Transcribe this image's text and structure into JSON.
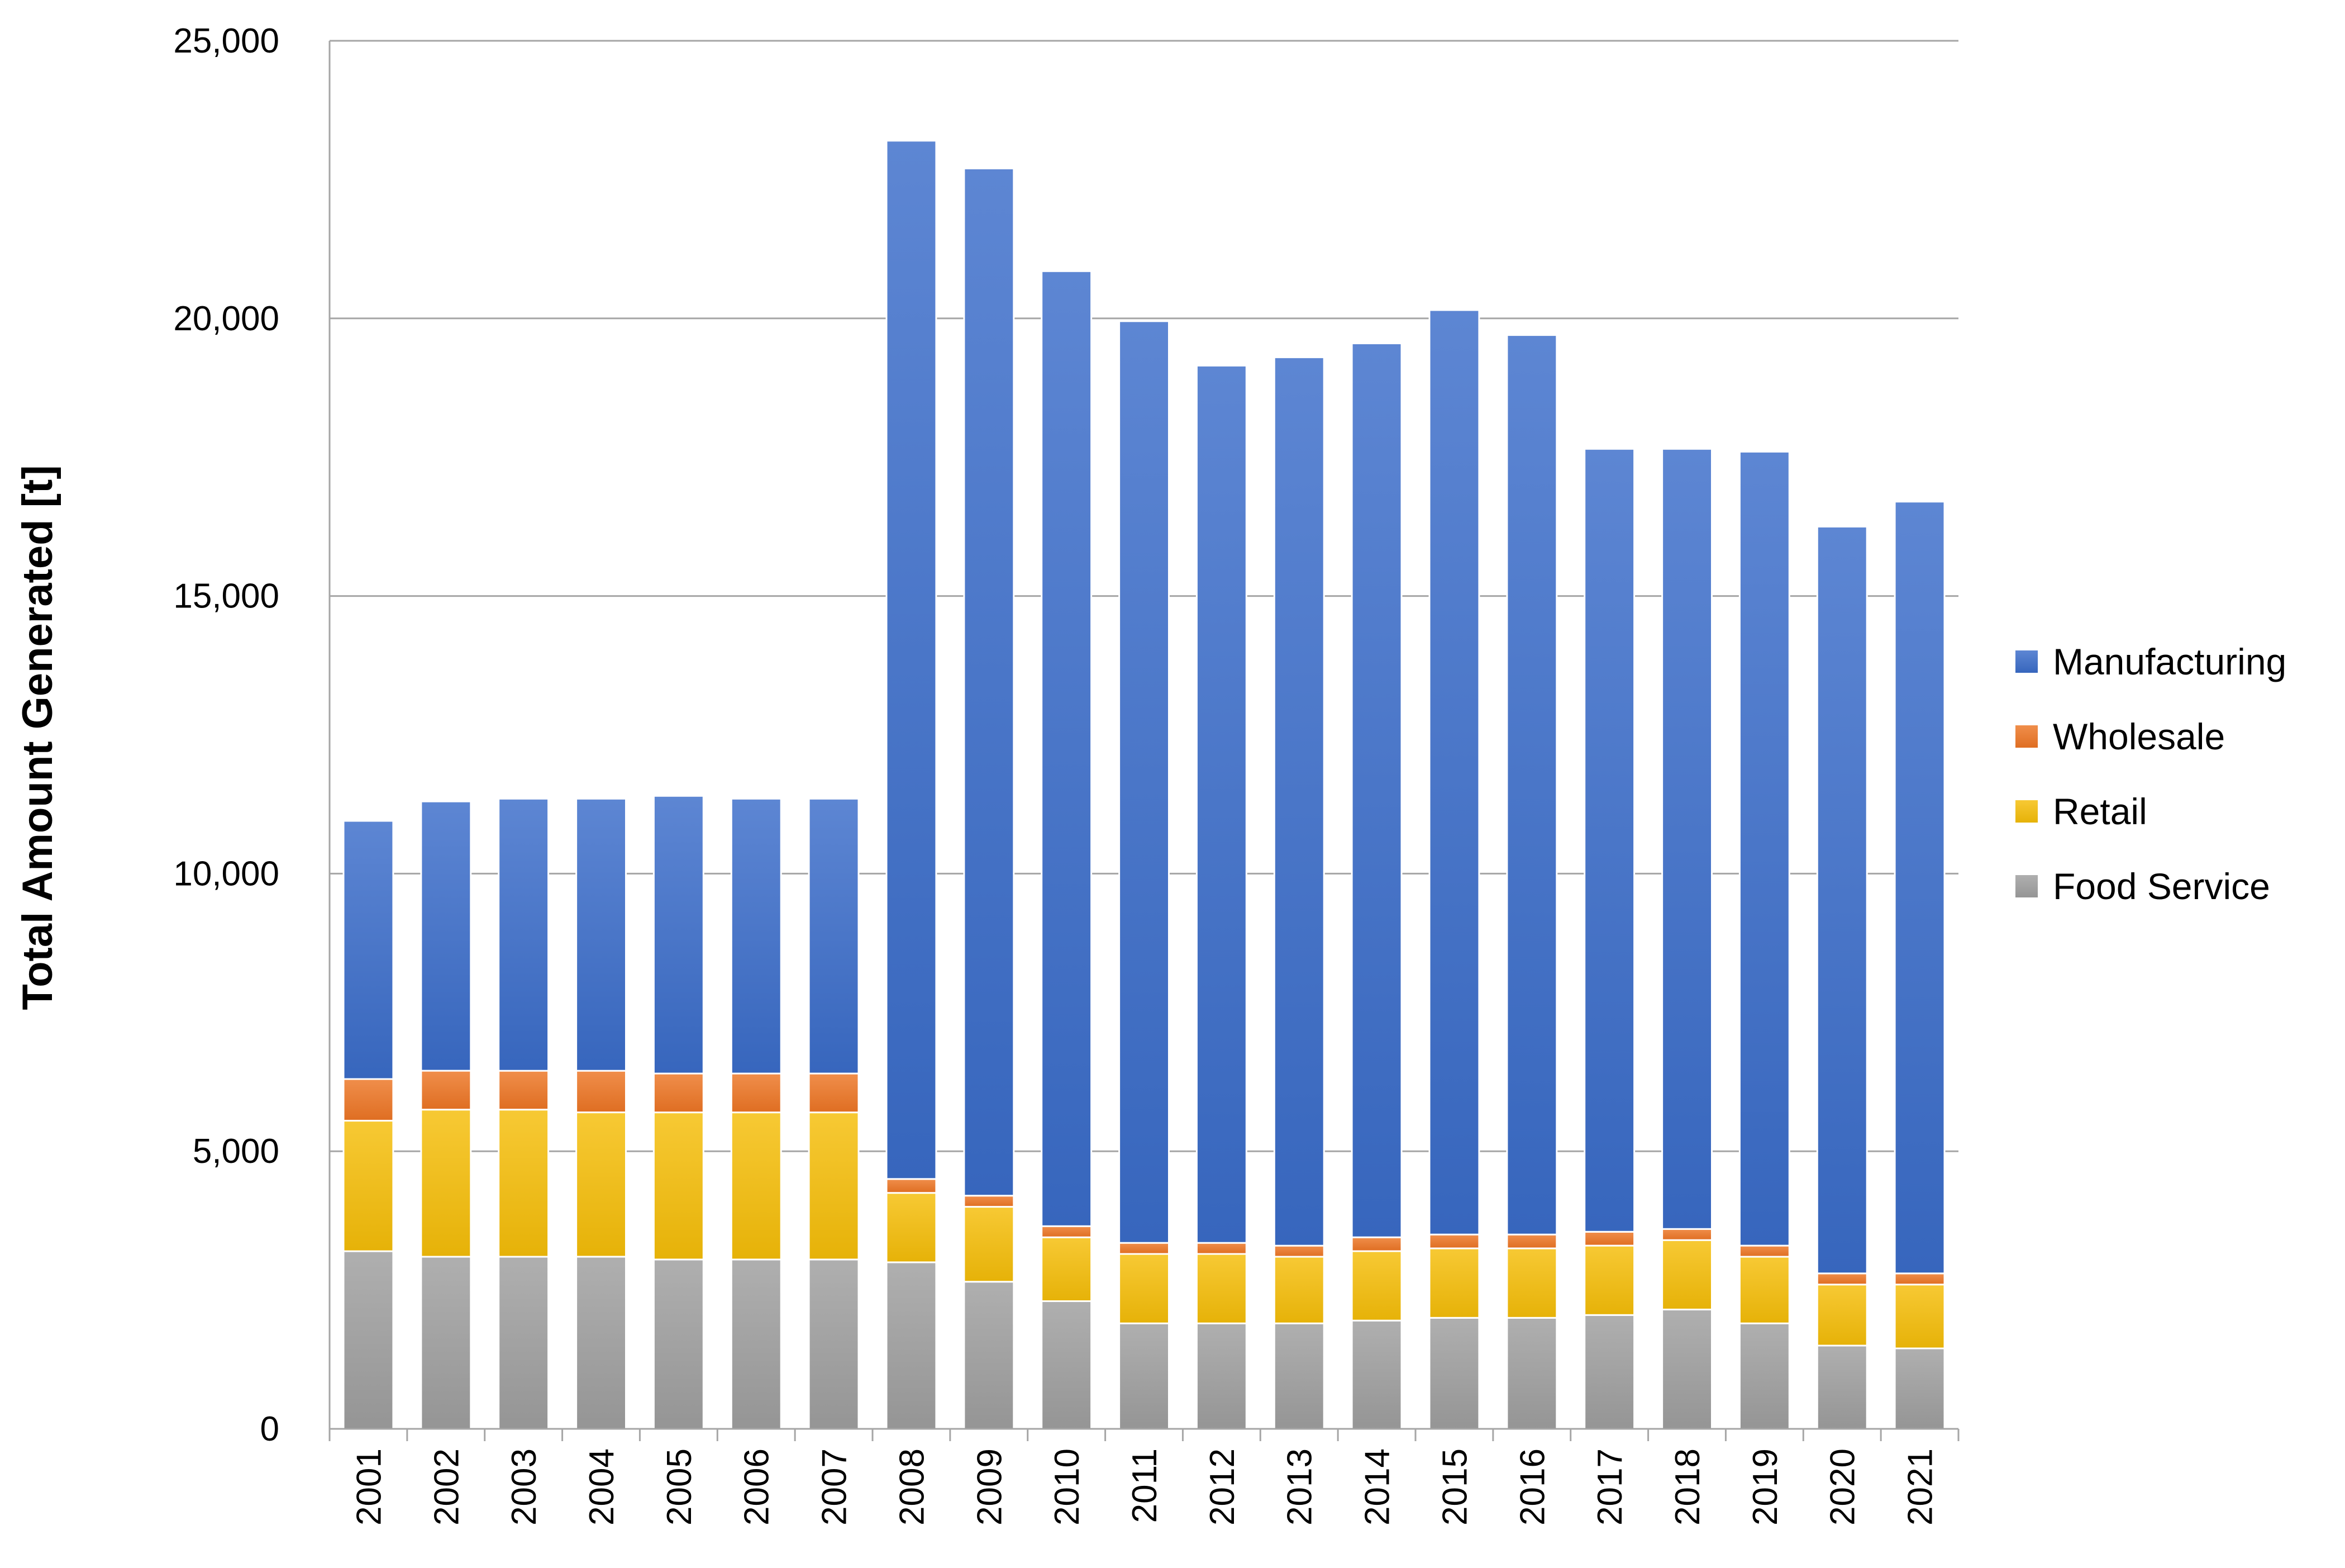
{
  "chart_data": {
    "type": "bar",
    "stacked": true,
    "title": "",
    "xlabel": "",
    "ylabel": "Total Amount Generated [t]",
    "ylim": [
      0,
      25000
    ],
    "yticks": [
      0,
      5000,
      10000,
      15000,
      20000,
      25000
    ],
    "ytick_labels": [
      "0",
      "5,000",
      "10,000",
      "15,000",
      "20,000",
      "25,000"
    ],
    "grid": "horizontal",
    "legend_position": "right",
    "categories": [
      "2001",
      "2002",
      "2003",
      "2004",
      "2005",
      "2006",
      "2007",
      "2008",
      "2009",
      "2010",
      "2011",
      "2012",
      "2013",
      "2014",
      "2015",
      "2016",
      "2017",
      "2018",
      "2019",
      "2020",
      "2021"
    ],
    "series": [
      {
        "name": "Food Service",
        "color": "#9e9e9e",
        "values": [
          3200,
          3100,
          3100,
          3100,
          3050,
          3050,
          3050,
          3000,
          2650,
          2300,
          1900,
          1900,
          1900,
          1950,
          2000,
          2000,
          2050,
          2150,
          1900,
          1500,
          1450
        ]
      },
      {
        "name": "Retail",
        "color": "#f5bd08",
        "values": [
          2350,
          2650,
          2650,
          2600,
          2650,
          2650,
          2650,
          1250,
          1350,
          1150,
          1250,
          1250,
          1200,
          1250,
          1250,
          1250,
          1250,
          1250,
          1200,
          1100,
          1150
        ]
      },
      {
        "name": "Wholesale",
        "color": "#ed7524",
        "values": [
          750,
          700,
          700,
          750,
          700,
          700,
          700,
          250,
          200,
          200,
          200,
          200,
          200,
          250,
          250,
          250,
          250,
          200,
          200,
          200,
          200
        ]
      },
      {
        "name": "Manufacturing",
        "color": "#3a6cc9",
        "values": [
          4650,
          4850,
          4900,
          4900,
          5000,
          4950,
          4950,
          18700,
          18500,
          17200,
          16600,
          15800,
          16000,
          16100,
          16650,
          16200,
          14100,
          14050,
          14300,
          13450,
          13900
        ]
      }
    ],
    "legend_order": [
      "Manufacturing",
      "Wholesale",
      "Retail",
      "Food Service"
    ]
  }
}
